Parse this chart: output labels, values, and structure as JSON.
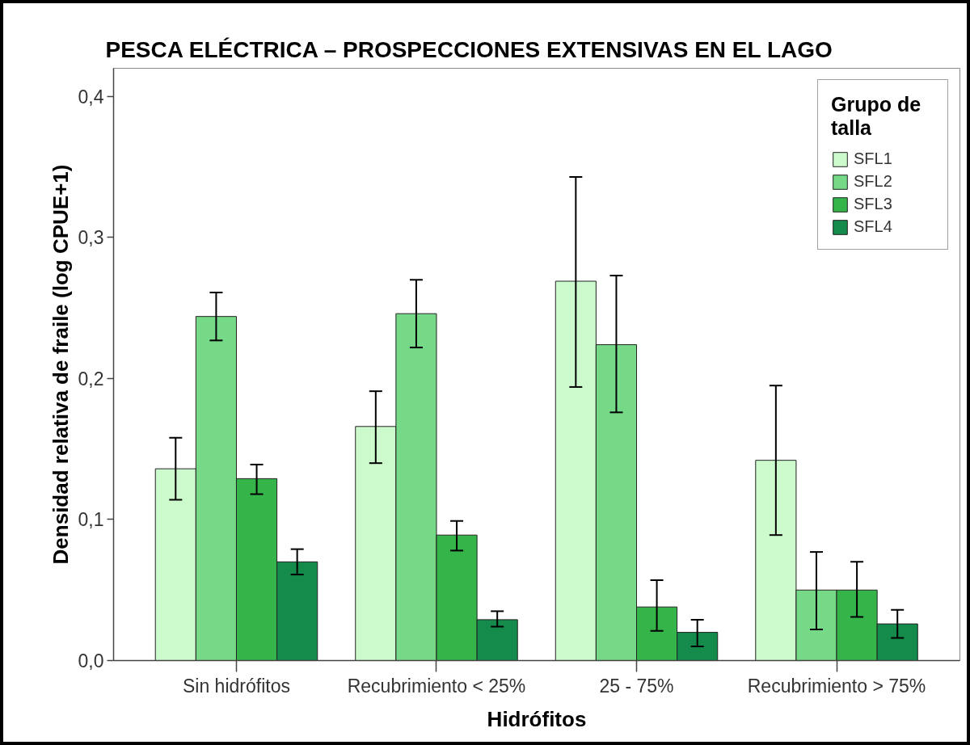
{
  "chart_data": {
    "type": "bar",
    "title": "PESCA ELÉCTRICA – PROSPECCIONES EXTENSIVAS EN EL LAGO",
    "xlabel": "Hidrófitos",
    "ylabel": "Densidad relativa de fraile (log CPUE+1)",
    "legend_title": "Grupo de talla",
    "legend": "top right",
    "categories": [
      "Sin hidrófitos",
      "Recubrimiento < 25%",
      "25 - 75%",
      "Recubrimiento > 75%"
    ],
    "series": [
      {
        "name": "SFL1",
        "color": "#ccfacc",
        "values": [
          0.136,
          0.166,
          0.269,
          0.142
        ],
        "errors": [
          [
            0.114,
            0.158
          ],
          [
            0.14,
            0.191
          ],
          [
            0.194,
            0.343
          ],
          [
            0.089,
            0.195
          ]
        ]
      },
      {
        "name": "SFL2",
        "color": "#76d987",
        "values": [
          0.244,
          0.246,
          0.224,
          0.05
        ],
        "errors": [
          [
            0.227,
            0.261
          ],
          [
            0.222,
            0.27
          ],
          [
            0.176,
            0.273
          ],
          [
            0.022,
            0.077
          ]
        ]
      },
      {
        "name": "SFL3",
        "color": "#35b44a",
        "values": [
          0.129,
          0.089,
          0.038,
          0.05
        ],
        "errors": [
          [
            0.118,
            0.139
          ],
          [
            0.078,
            0.099
          ],
          [
            0.021,
            0.057
          ],
          [
            0.031,
            0.07
          ]
        ]
      },
      {
        "name": "SFL4",
        "color": "#148b4a",
        "values": [
          0.07,
          0.029,
          0.02,
          0.026
        ],
        "errors": [
          [
            0.061,
            0.079
          ],
          [
            0.024,
            0.035
          ],
          [
            0.01,
            0.029
          ],
          [
            0.016,
            0.036
          ]
        ]
      }
    ],
    "ylim": [
      0,
      0.42
    ],
    "yticks": [
      {
        "value": 0,
        "label": "0,0"
      },
      {
        "value": 0.1,
        "label": "0,1"
      },
      {
        "value": 0.2,
        "label": "0,2"
      },
      {
        "value": 0.3,
        "label": "0,3"
      },
      {
        "value": 0.4,
        "label": "0,4"
      }
    ]
  }
}
